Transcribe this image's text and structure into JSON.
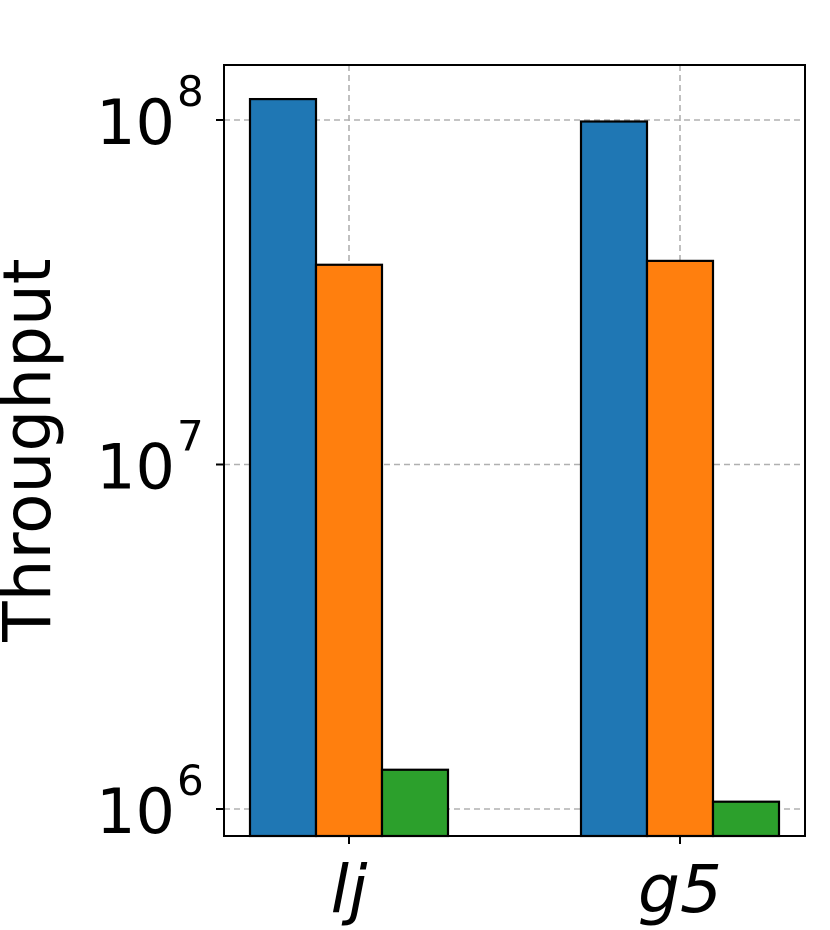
{
  "chart_data": {
    "type": "bar",
    "categories": [
      "lj",
      "g5"
    ],
    "series": [
      {
        "color": "#1f77b4",
        "values": [
          115000000,
          99000000
        ]
      },
      {
        "color": "#ff7f0e",
        "values": [
          38000000,
          39000000
        ]
      },
      {
        "color": "#2ca02c",
        "values": [
          1300000,
          1050000
        ]
      }
    ],
    "ylabel": "Throughput",
    "yscale": "log",
    "ylim": [
      850000,
      150000000
    ],
    "yticks": [
      {
        "base": "10",
        "exp": "6",
        "value": 1000000
      },
      {
        "base": "10",
        "exp": "7",
        "value": 10000000
      },
      {
        "base": "10",
        "exp": "8",
        "value": 100000000
      }
    ],
    "grid": true
  }
}
